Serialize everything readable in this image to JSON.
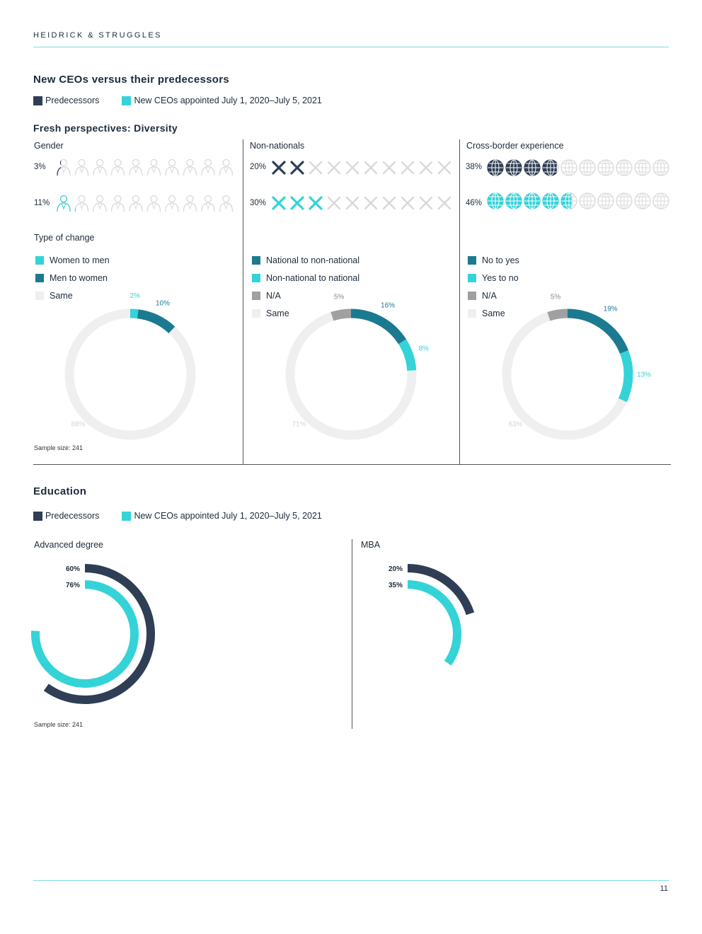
{
  "header": {
    "brand": "HEIDRICK & STRUGGLES",
    "page_number": "11"
  },
  "colors": {
    "predecessors": "#2f3e54",
    "new_ceos": "#34d3d8",
    "teal_dark": "#1b7a90",
    "gray": "#a0a0a0",
    "light": "#efefef",
    "rule": "#7fdede"
  },
  "legend": {
    "predecessors": "Predecessors",
    "new_ceos": "New CEOs appointed July 1, 2020–July 5, 2021"
  },
  "section1": {
    "title": "New CEOs versus their predecessors",
    "subtitle": "Fresh perspectives: Diversity",
    "type_of_change": "Type of change",
    "sample": "Sample size: 241"
  },
  "section2": {
    "title": "Education",
    "sample": "Sample size: 241"
  },
  "chart_data": [
    {
      "type": "pictogram",
      "title": "Gender",
      "icon": "person-icon",
      "series": [
        {
          "name": "Predecessors",
          "label": "3%",
          "value": 3
        },
        {
          "name": "New CEOs appointed July 1, 2020–July 5, 2021",
          "label": "11%",
          "value": 11
        }
      ]
    },
    {
      "type": "pictogram",
      "title": "Non-nationals",
      "icon": "x-icon",
      "series": [
        {
          "name": "Predecessors",
          "label": "20%",
          "value": 20
        },
        {
          "name": "New CEOs appointed July 1, 2020–July 5, 2021",
          "label": "30%",
          "value": 30
        }
      ]
    },
    {
      "type": "pictogram",
      "title": "Cross-border experience",
      "icon": "globe-icon",
      "series": [
        {
          "name": "Predecessors",
          "label": "38%",
          "value": 38
        },
        {
          "name": "New CEOs appointed July 1, 2020–July 5, 2021",
          "label": "46%",
          "value": 46
        }
      ]
    },
    {
      "type": "pie",
      "variant": "donut",
      "legend": [
        "Women to men",
        "Men to women",
        "Same"
      ],
      "slices": [
        {
          "name": "Women to men",
          "value": 2,
          "label": "2%",
          "color": "#34d3d8"
        },
        {
          "name": "Men to women",
          "value": 10,
          "label": "10%",
          "color": "#1b7a90"
        },
        {
          "name": "Same",
          "value": 88,
          "label": "88%",
          "color": "#efefef"
        }
      ]
    },
    {
      "type": "pie",
      "variant": "donut",
      "legend": [
        "National to non-national",
        "Non-national to national",
        "N/A",
        "Same"
      ],
      "slices": [
        {
          "name": "National to non-national",
          "value": 16,
          "label": "16%",
          "color": "#1b7a90"
        },
        {
          "name": "Non-national to national",
          "value": 8,
          "label": "8%",
          "color": "#34d3d8"
        },
        {
          "name": "Same",
          "value": 71,
          "label": "71%",
          "color": "#efefef"
        },
        {
          "name": "N/A",
          "value": 5,
          "label": "5%",
          "color": "#a0a0a0"
        }
      ]
    },
    {
      "type": "pie",
      "variant": "donut",
      "legend": [
        "No to yes",
        "Yes to no",
        "N/A",
        "Same"
      ],
      "slices": [
        {
          "name": "No to yes",
          "value": 19,
          "label": "19%",
          "color": "#1b7a90"
        },
        {
          "name": "Yes to no",
          "value": 13,
          "label": "13%",
          "color": "#34d3d8"
        },
        {
          "name": "Same",
          "value": 63,
          "label": "63%",
          "color": "#efefef"
        },
        {
          "name": "N/A",
          "value": 5,
          "label": "5%",
          "color": "#a0a0a0"
        }
      ]
    },
    {
      "type": "radial-bar",
      "title": "Advanced degree",
      "series": [
        {
          "name": "Predecessors",
          "value": 60,
          "label": "60%"
        },
        {
          "name": "New CEOs appointed July 1, 2020–July 5, 2021",
          "value": 76,
          "label": "76%"
        }
      ]
    },
    {
      "type": "radial-bar",
      "title": "MBA",
      "series": [
        {
          "name": "Predecessors",
          "value": 20,
          "label": "20%"
        },
        {
          "name": "New CEOs appointed July 1, 2020–July 5, 2021",
          "value": 35,
          "label": "35%"
        }
      ]
    }
  ]
}
